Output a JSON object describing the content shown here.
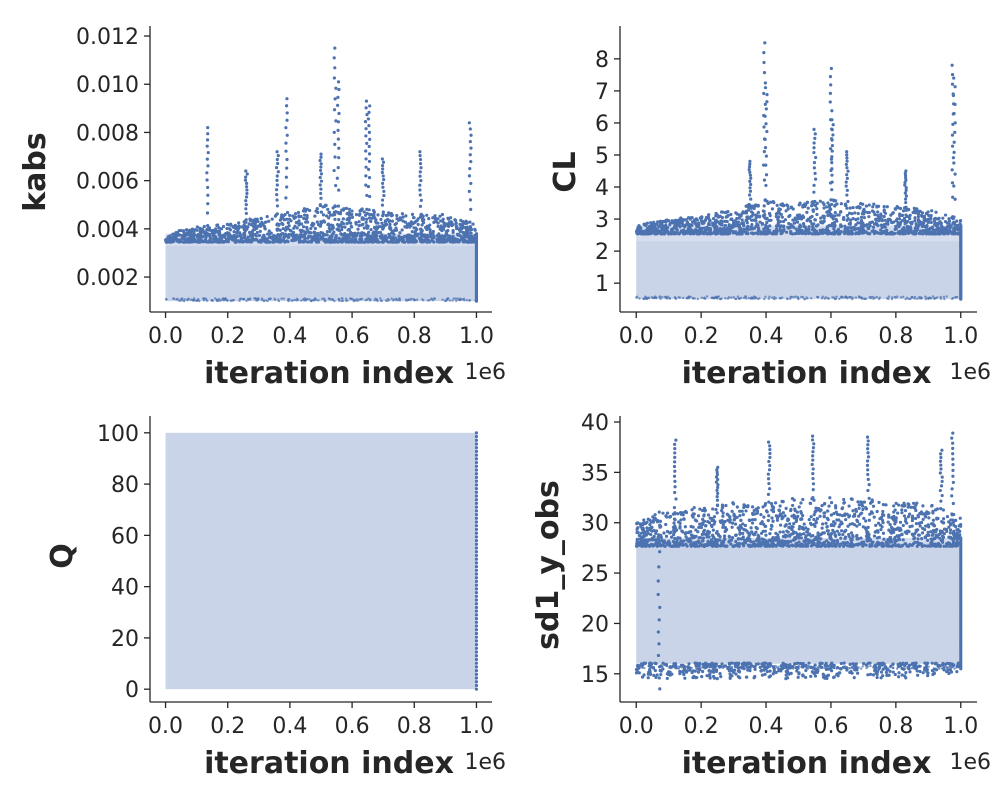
{
  "chart_data": [
    {
      "type": "scatter",
      "title": "",
      "xlabel": "iteration index",
      "ylabel": "kabs",
      "x_offset_label": "1e6",
      "xlim": [
        -0.05,
        1.05
      ],
      "ylim": [
        0.00055,
        0.01225
      ],
      "xticks": [
        0.0,
        0.2,
        0.4,
        0.6,
        0.8,
        1.0
      ],
      "xtick_labels": [
        "0.0",
        "0.2",
        "0.4",
        "0.6",
        "0.8",
        "1.0"
      ],
      "yticks": [
        0.002,
        0.004,
        0.006,
        0.008,
        0.01,
        0.012
      ],
      "ytick_labels": [
        "0.002",
        "0.004",
        "0.006",
        "0.008",
        "0.010",
        "0.012"
      ],
      "band": {
        "low": 0.001,
        "high": 0.0033
      },
      "dense_edge": {
        "low": 0.001,
        "high": 0.0038
      },
      "envelope": [
        [
          0.0,
          0.0038
        ],
        [
          0.1,
          0.0041
        ],
        [
          0.2,
          0.0042
        ],
        [
          0.3,
          0.0045
        ],
        [
          0.4,
          0.0047
        ],
        [
          0.5,
          0.005
        ],
        [
          0.6,
          0.0049
        ],
        [
          0.7,
          0.0047
        ],
        [
          0.8,
          0.0046
        ],
        [
          0.9,
          0.0046
        ],
        [
          1.0,
          0.0042
        ]
      ],
      "spikes": [
        [
          0.135,
          0.0082
        ],
        [
          0.26,
          0.0064
        ],
        [
          0.36,
          0.0072
        ],
        [
          0.39,
          0.0094
        ],
        [
          0.5,
          0.0071
        ],
        [
          0.545,
          0.0115
        ],
        [
          0.555,
          0.0101
        ],
        [
          0.645,
          0.0093
        ],
        [
          0.655,
          0.0091
        ],
        [
          0.7,
          0.0069
        ],
        [
          0.82,
          0.0072
        ],
        [
          0.98,
          0.0084
        ]
      ],
      "point_color": "#4c72b0",
      "grid": false
    },
    {
      "type": "scatter",
      "title": "",
      "xlabel": "iteration index",
      "ylabel": "CL",
      "x_offset_label": "1e6",
      "xlim": [
        -0.05,
        1.05
      ],
      "ylim": [
        0.1,
        8.9
      ],
      "xticks": [
        0.0,
        0.2,
        0.4,
        0.6,
        0.8,
        1.0
      ],
      "xtick_labels": [
        "0.0",
        "0.2",
        "0.4",
        "0.6",
        "0.8",
        "1.0"
      ],
      "yticks": [
        1,
        2,
        3,
        4,
        5,
        6,
        7,
        8
      ],
      "ytick_labels": [
        "1",
        "2",
        "3",
        "4",
        "5",
        "6",
        "7",
        "8"
      ],
      "band": {
        "low": 0.5,
        "high": 2.3
      },
      "dense_edge": {
        "low": 0.5,
        "high": 2.8
      },
      "envelope": [
        [
          0.0,
          2.8
        ],
        [
          0.1,
          3.0
        ],
        [
          0.2,
          3.1
        ],
        [
          0.3,
          3.3
        ],
        [
          0.4,
          3.6
        ],
        [
          0.5,
          3.5
        ],
        [
          0.6,
          3.6
        ],
        [
          0.7,
          3.5
        ],
        [
          0.8,
          3.4
        ],
        [
          0.9,
          3.3
        ],
        [
          1.0,
          3.0
        ]
      ],
      "spikes": [
        [
          0.35,
          4.8
        ],
        [
          0.395,
          8.5
        ],
        [
          0.4,
          7.1
        ],
        [
          0.55,
          5.8
        ],
        [
          0.6,
          7.7
        ],
        [
          0.605,
          6.1
        ],
        [
          0.65,
          5.1
        ],
        [
          0.83,
          4.5
        ],
        [
          0.975,
          7.8
        ],
        [
          0.98,
          7.4
        ]
      ],
      "point_color": "#4c72b0",
      "grid": false
    },
    {
      "type": "scatter",
      "title": "",
      "xlabel": "iteration index",
      "ylabel": "Q",
      "x_offset_label": "1e6",
      "xlim": [
        -0.05,
        1.05
      ],
      "ylim": [
        -5,
        105
      ],
      "xticks": [
        0.0,
        0.2,
        0.4,
        0.6,
        0.8,
        1.0
      ],
      "xtick_labels": [
        "0.0",
        "0.2",
        "0.4",
        "0.6",
        "0.8",
        "1.0"
      ],
      "yticks": [
        0,
        20,
        40,
        60,
        80,
        100
      ],
      "ytick_labels": [
        "0",
        "20",
        "40",
        "60",
        "80",
        "100"
      ],
      "band": {
        "low": 0,
        "high": 100
      },
      "dense_edge": {
        "low": 0,
        "high": 100
      },
      "envelope": [],
      "spikes": [],
      "point_color": "#4c72b0",
      "grid": false
    },
    {
      "type": "scatter",
      "title": "",
      "xlabel": "iteration index",
      "ylabel": "sd1_y_obs",
      "x_offset_label": "1e6",
      "xlim": [
        -0.05,
        1.05
      ],
      "ylim": [
        12.2,
        40.2
      ],
      "xticks": [
        0.0,
        0.2,
        0.4,
        0.6,
        0.8,
        1.0
      ],
      "xtick_labels": [
        "0.0",
        "0.2",
        "0.4",
        "0.6",
        "0.8",
        "1.0"
      ],
      "yticks": [
        15,
        20,
        25,
        30,
        35,
        40
      ],
      "ytick_labels": [
        "15",
        "20",
        "25",
        "30",
        "35",
        "40"
      ],
      "band": {
        "low": 16.0,
        "high": 28.0
      },
      "dense_edge": {
        "low": 15.5,
        "high": 28.5
      },
      "envelope": [
        [
          0.0,
          30.0
        ],
        [
          0.1,
          31.5
        ],
        [
          0.2,
          31.5
        ],
        [
          0.3,
          32.0
        ],
        [
          0.4,
          32.0
        ],
        [
          0.5,
          32.5
        ],
        [
          0.6,
          32.5
        ],
        [
          0.7,
          32.5
        ],
        [
          0.8,
          32.0
        ],
        [
          0.9,
          32.0
        ],
        [
          1.0,
          30.5
        ]
      ],
      "low_envelope": [
        [
          0.0,
          14.5
        ],
        [
          0.2,
          14.5
        ],
        [
          0.4,
          14.5
        ],
        [
          0.6,
          14.5
        ],
        [
          0.8,
          14.5
        ],
        [
          1.0,
          15.0
        ]
      ],
      "spikes": [
        [
          0.07,
          13.5
        ],
        [
          0.12,
          38.2
        ],
        [
          0.25,
          35.5
        ],
        [
          0.41,
          38.0
        ],
        [
          0.545,
          38.6
        ],
        [
          0.715,
          38.5
        ],
        [
          0.94,
          37.2
        ],
        [
          0.975,
          38.9
        ]
      ],
      "point_color": "#4c72b0",
      "grid": false
    }
  ]
}
